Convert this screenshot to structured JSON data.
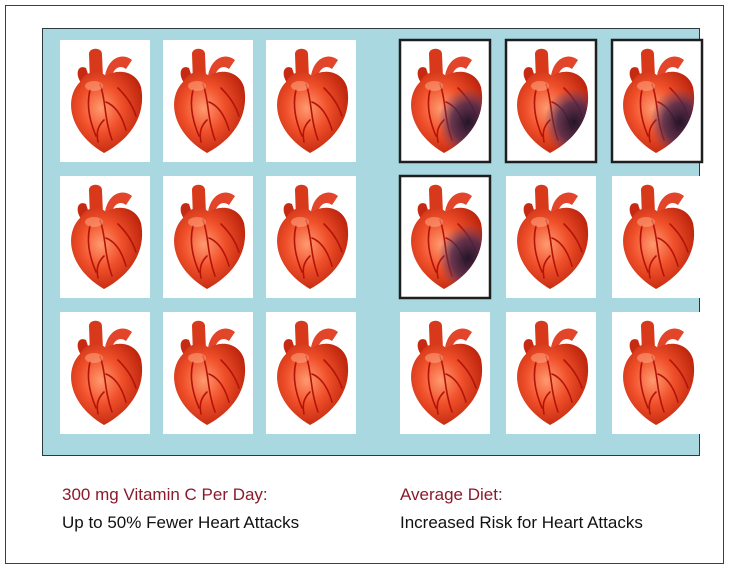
{
  "captions": [
    {
      "heading": "300 mg Vitamin C Per Day:",
      "text": "Up to 50% Fewer Heart Attacks"
    },
    {
      "heading": "Average Diet:",
      "text": "Increased Risk for Heart Attacks"
    }
  ]
}
